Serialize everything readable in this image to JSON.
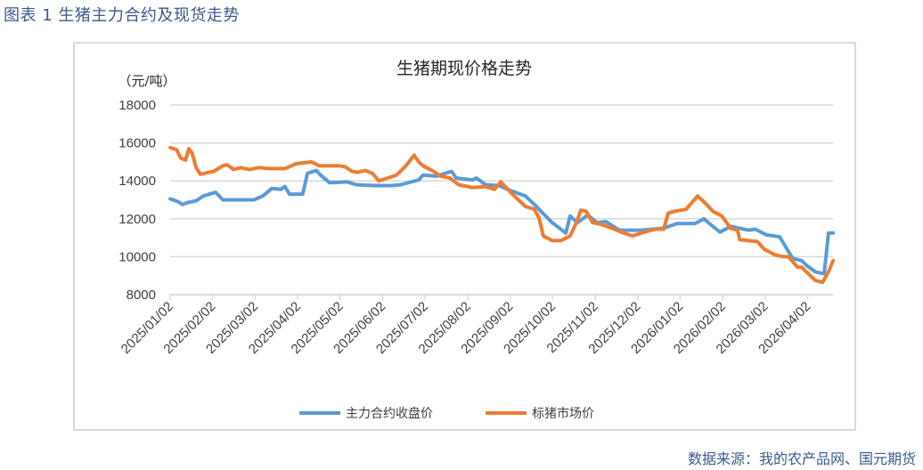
{
  "figure_title": "图表 1  生猪主力合约及现货走势",
  "source": "数据来源：我的农产品网、国元期货",
  "chart_data": {
    "type": "line",
    "title": "生猪期现价格走势",
    "ylabel": "（元/吨）",
    "xlabel": "",
    "x_unit": "months since 2025/01/02",
    "ylim": [
      8000,
      18000
    ],
    "yticks": [
      8000,
      10000,
      12000,
      14000,
      16000,
      18000
    ],
    "xlim": [
      0,
      15.6
    ],
    "xticks": [
      "2025/01/02",
      "2025/02/02",
      "2025/03/02",
      "2025/04/02",
      "2025/05/02",
      "2025/06/02",
      "2025/07/02",
      "2025/08/02",
      "2025/09/02",
      "2025/10/02",
      "2025/11/02",
      "2025/12/02",
      "2026/01/02",
      "2026/02/02",
      "2026/03/02",
      "2026/04/02"
    ],
    "grid": true,
    "legend_position": "bottom",
    "series": [
      {
        "name": "主力合约收盘价",
        "color": "#5B9BD5",
        "x": [
          0,
          0.19,
          0.29,
          0.4,
          0.61,
          0.78,
          1.07,
          1.24,
          1.45,
          1.76,
          1.97,
          2.18,
          2.39,
          2.6,
          2.7,
          2.81,
          3.12,
          3.23,
          3.44,
          3.54,
          3.75,
          4.17,
          4.38,
          4.8,
          5.22,
          5.43,
          5.85,
          5.95,
          6.27,
          6.62,
          6.73,
          7.11,
          7.21,
          7.42,
          7.74,
          7.99,
          8.36,
          8.57,
          8.99,
          9.31,
          9.41,
          9.58,
          9.83,
          10.04,
          10.25,
          10.57,
          11.09,
          11.61,
          11.93,
          12.35,
          12.56,
          12.77,
          12.94,
          13.19,
          13.61,
          13.77,
          14.03,
          14.34,
          14.65,
          14.86,
          14.97,
          15.18,
          15.39,
          15.49,
          15.6
        ],
        "y": [
          13050,
          12900,
          12750,
          12850,
          12950,
          13200,
          13400,
          13000,
          13000,
          13000,
          13000,
          13200,
          13600,
          13550,
          13700,
          13300,
          13300,
          14400,
          14550,
          14300,
          13900,
          13950,
          13800,
          13750,
          13750,
          13800,
          14050,
          14300,
          14250,
          14500,
          14150,
          14050,
          14150,
          13800,
          13750,
          13500,
          13200,
          12750,
          11800,
          11250,
          12150,
          11800,
          12200,
          11800,
          11850,
          11400,
          11400,
          11500,
          11750,
          11750,
          12000,
          11600,
          11300,
          11600,
          11400,
          11450,
          11150,
          11050,
          9900,
          9800,
          9550,
          9200,
          9100,
          11250,
          11250
        ]
      },
      {
        "name": "标猪市场价",
        "color": "#ED7D31",
        "x": [
          0,
          0.15,
          0.25,
          0.36,
          0.44,
          0.52,
          0.61,
          0.71,
          1.03,
          1.24,
          1.34,
          1.49,
          1.66,
          1.87,
          2.08,
          2.29,
          2.7,
          2.96,
          3.12,
          3.33,
          3.5,
          3.96,
          4.11,
          4.28,
          4.42,
          4.59,
          4.76,
          4.91,
          5.12,
          5.32,
          5.53,
          5.74,
          5.85,
          5.95,
          6.16,
          6.37,
          6.58,
          6.79,
          7.11,
          7.42,
          7.63,
          7.78,
          8.05,
          8.36,
          8.57,
          8.68,
          8.78,
          8.99,
          9.2,
          9.41,
          9.58,
          9.66,
          9.79,
          9.94,
          10.15,
          10.46,
          10.67,
          10.88,
          11.09,
          11.4,
          11.61,
          11.72,
          11.87,
          12.14,
          12.41,
          12.56,
          12.77,
          12.98,
          13.19,
          13.35,
          13.4,
          13.82,
          13.98,
          14.23,
          14.44,
          14.55,
          14.76,
          14.86,
          14.97,
          15.18,
          15.35,
          15.49,
          15.6
        ],
        "y": [
          15750,
          15650,
          15200,
          15100,
          15700,
          15450,
          14700,
          14350,
          14500,
          14800,
          14850,
          14600,
          14700,
          14600,
          14700,
          14650,
          14650,
          14900,
          14950,
          15000,
          14800,
          14800,
          14750,
          14500,
          14450,
          14550,
          14400,
          14000,
          14150,
          14300,
          14750,
          15350,
          15000,
          14800,
          14550,
          14250,
          14150,
          13800,
          13650,
          13700,
          13550,
          13950,
          13300,
          12650,
          12500,
          12050,
          11100,
          10850,
          10850,
          11100,
          11900,
          12450,
          12400,
          11800,
          11700,
          11450,
          11250,
          11100,
          11250,
          11450,
          11450,
          12300,
          12400,
          12500,
          13200,
          12900,
          12400,
          12150,
          11500,
          11400,
          10900,
          10800,
          10400,
          10100,
          10000,
          10000,
          9450,
          9450,
          9200,
          8750,
          8650,
          9200,
          9800
        ]
      }
    ]
  }
}
